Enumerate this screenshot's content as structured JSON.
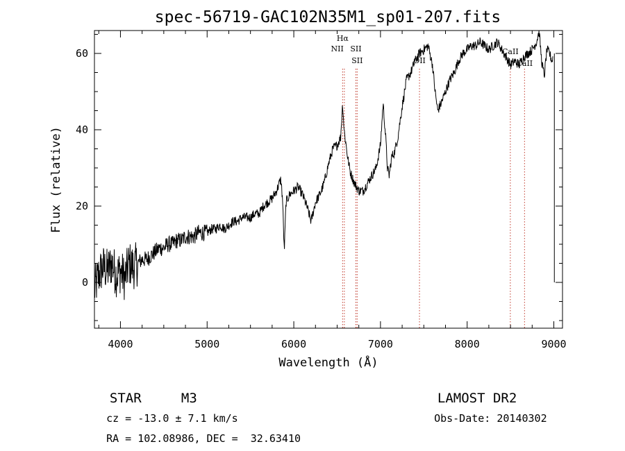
{
  "chart_data": {
    "type": "line",
    "title": "spec-56719-GAC102N35M1_sp01-207.fits",
    "xlabel": "Wavelength (Å)",
    "ylabel": "Flux (relative)",
    "xlim": [
      3700,
      9100
    ],
    "ylim": [
      -12,
      66
    ],
    "xticks": [
      4000,
      5000,
      6000,
      7000,
      8000,
      9000
    ],
    "yticks": [
      0,
      20,
      40,
      60
    ],
    "grid": false,
    "series": [
      {
        "color": "#000000",
        "x": [
          3700,
          3750,
          3800,
          3850,
          3900,
          3950,
          4000,
          4050,
          4100,
          4150,
          4200,
          4250,
          4300,
          4350,
          4400,
          4450,
          4500,
          4550,
          4600,
          4650,
          4700,
          4750,
          4800,
          4850,
          4900,
          4950,
          5000,
          5050,
          5100,
          5150,
          5200,
          5250,
          5300,
          5350,
          5400,
          5450,
          5500,
          5550,
          5600,
          5650,
          5700,
          5750,
          5800,
          5850,
          5870,
          5890,
          5910,
          5950,
          6000,
          6050,
          6100,
          6150,
          6200,
          6250,
          6300,
          6350,
          6400,
          6450,
          6500,
          6540,
          6563,
          6580,
          6620,
          6650,
          6700,
          6750,
          6800,
          6850,
          6900,
          6950,
          7000,
          7030,
          7060,
          7080,
          7100,
          7130,
          7160,
          7200,
          7250,
          7300,
          7350,
          7400,
          7450,
          7500,
          7550,
          7600,
          7630,
          7660,
          7700,
          7750,
          7800,
          7850,
          7900,
          7950,
          8000,
          8050,
          8100,
          8150,
          8200,
          8250,
          8300,
          8350,
          8400,
          8450,
          8500,
          8550,
          8600,
          8650,
          8700,
          8750,
          8800,
          8830,
          8860,
          8890,
          8920,
          8950,
          8980,
          8990
        ],
        "y": [
          -2,
          2,
          4,
          3,
          5,
          2,
          3,
          1,
          5,
          4,
          5,
          6,
          6,
          7,
          8,
          9,
          9,
          10,
          10,
          11,
          11,
          12,
          12,
          12,
          13,
          13,
          13,
          14,
          14,
          15,
          14,
          15,
          16,
          16,
          17,
          17,
          17,
          18,
          18,
          20,
          21,
          22,
          24,
          27,
          22,
          8,
          21,
          23,
          24,
          25,
          23,
          20,
          16,
          21,
          23,
          26,
          31,
          35,
          36,
          38,
          47,
          40,
          33,
          29,
          26,
          24,
          24,
          26,
          28,
          30,
          36,
          47,
          38,
          30,
          28,
          33,
          34,
          38,
          46,
          53,
          55,
          58,
          60,
          61,
          62,
          57,
          50,
          45,
          47,
          50,
          53,
          55,
          58,
          60,
          61,
          62,
          62,
          63,
          62,
          61,
          62,
          63,
          61,
          59,
          57,
          58,
          57,
          59,
          60,
          61,
          63,
          66,
          58,
          54,
          61,
          60,
          58,
          59
        ]
      }
    ],
    "line_markers": [
      {
        "label": "Hα",
        "x": 6563
      },
      {
        "label": "NII",
        "x": 6583
      },
      {
        "label": "SII",
        "x": 6716
      },
      {
        "label": "SII",
        "x": 6731
      },
      {
        "label": "OII",
        "x": 7450
      },
      {
        "label": "CaII",
        "x": 8498
      },
      {
        "label": "CaII",
        "x": 8662
      }
    ]
  },
  "info": {
    "object_class": "STAR",
    "subclass": "M3",
    "survey": "LAMOST DR2",
    "cz": "cz = -13.0 ± 7.1 km/s",
    "obs_date": "Obs-Date: 20140302",
    "radec": "RA = 102.08986, DEC =  32.63410"
  }
}
